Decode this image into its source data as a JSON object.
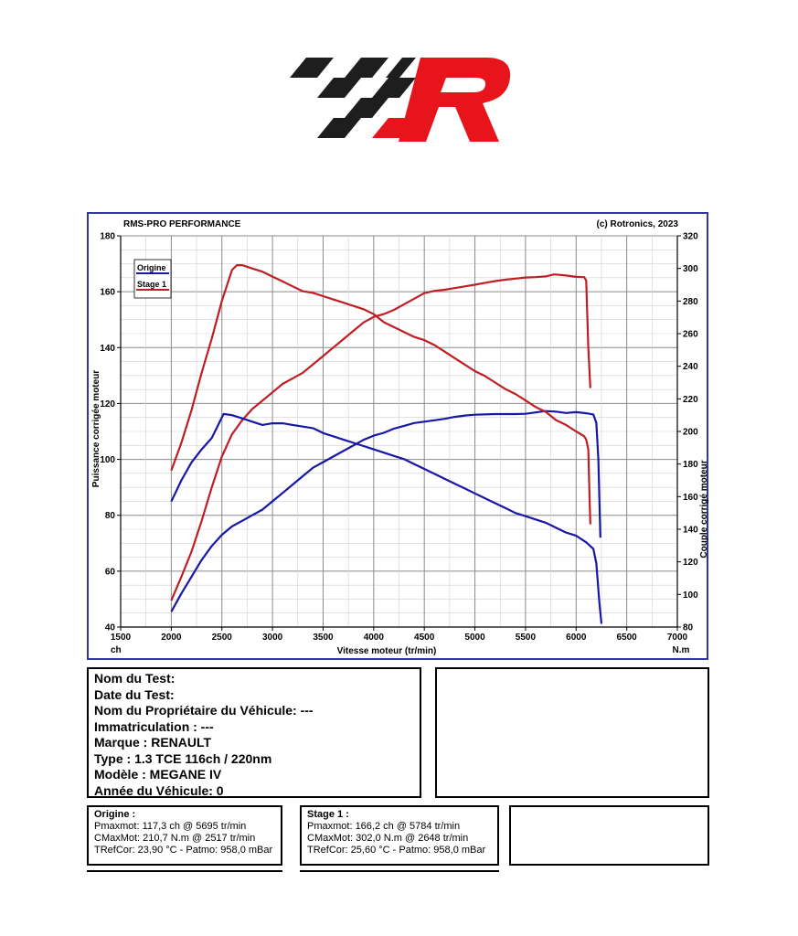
{
  "logo": {
    "name": "rms-pro-logo",
    "colors": {
      "black": "#1e1e1e",
      "red": "#e8141c"
    }
  },
  "chart_header": {
    "left": "RMS-PRO PERFORMANCE",
    "right": "(c) Rotronics, 2023"
  },
  "chart_data": {
    "type": "line",
    "title": "",
    "xlabel": "Vitesse moteur (tr/min)",
    "xunit": "ch",
    "xunit_right": "N.m",
    "ylabel": "Puissance corrigée moteur",
    "y2label": "Couple corrigé moteur",
    "xlim": [
      1500,
      7000
    ],
    "ylim": [
      40,
      180
    ],
    "y2lim": [
      80,
      320
    ],
    "xticks": [
      1500,
      2000,
      2500,
      3000,
      3500,
      4000,
      4500,
      5000,
      5500,
      6000,
      6500,
      7000
    ],
    "yticks": [
      40,
      60,
      80,
      100,
      120,
      140,
      160,
      180
    ],
    "y2ticks": [
      80,
      100,
      120,
      140,
      160,
      180,
      200,
      220,
      240,
      260,
      280,
      300,
      320
    ],
    "grid": true,
    "legend_position": "top-left",
    "colors": {
      "origine": "#1717a8",
      "stage1": "#bf1e24",
      "frame": "#2f37a8"
    },
    "series": [
      {
        "name": "Origine",
        "kind": "power",
        "axis": "left",
        "points": [
          [
            2000,
            45.5
          ],
          [
            2100,
            52
          ],
          [
            2200,
            58
          ],
          [
            2300,
            64
          ],
          [
            2400,
            69
          ],
          [
            2500,
            73
          ],
          [
            2600,
            76
          ],
          [
            2700,
            78
          ],
          [
            2800,
            80
          ],
          [
            2900,
            82
          ],
          [
            3000,
            85
          ],
          [
            3100,
            88
          ],
          [
            3200,
            91
          ],
          [
            3300,
            94
          ],
          [
            3400,
            97
          ],
          [
            3500,
            99
          ],
          [
            3600,
            101
          ],
          [
            3700,
            103
          ],
          [
            3800,
            105
          ],
          [
            3900,
            107
          ],
          [
            4000,
            108.5
          ],
          [
            4100,
            109.5
          ],
          [
            4200,
            111
          ],
          [
            4300,
            112
          ],
          [
            4400,
            113
          ],
          [
            4500,
            113.5
          ],
          [
            4600,
            114
          ],
          [
            4700,
            114.5
          ],
          [
            4800,
            115.2
          ],
          [
            4900,
            115.7
          ],
          [
            5000,
            116
          ],
          [
            5200,
            116.2
          ],
          [
            5400,
            116.2
          ],
          [
            5500,
            116.3
          ],
          [
            5600,
            116.8
          ],
          [
            5695,
            117.3
          ],
          [
            5800,
            117.1
          ],
          [
            5900,
            116.6
          ],
          [
            6000,
            116.9
          ],
          [
            6100,
            116.5
          ],
          [
            6170,
            116.1
          ],
          [
            6200,
            113
          ],
          [
            6220,
            100
          ],
          [
            6240,
            72
          ]
        ]
      },
      {
        "name": "Stage 1",
        "kind": "power",
        "axis": "left",
        "points": [
          [
            2000,
            49.5
          ],
          [
            2100,
            58
          ],
          [
            2200,
            67
          ],
          [
            2300,
            78
          ],
          [
            2400,
            90
          ],
          [
            2500,
            101
          ],
          [
            2600,
            109
          ],
          [
            2700,
            114
          ],
          [
            2800,
            118
          ],
          [
            2900,
            121
          ],
          [
            3000,
            124
          ],
          [
            3100,
            127
          ],
          [
            3200,
            129
          ],
          [
            3300,
            131
          ],
          [
            3400,
            134
          ],
          [
            3500,
            137
          ],
          [
            3600,
            140
          ],
          [
            3700,
            143
          ],
          [
            3800,
            146
          ],
          [
            3900,
            149
          ],
          [
            4000,
            151
          ],
          [
            4100,
            152
          ],
          [
            4200,
            153.5
          ],
          [
            4300,
            155.5
          ],
          [
            4400,
            157.5
          ],
          [
            4500,
            159.5
          ],
          [
            4600,
            160.3
          ],
          [
            4700,
            160.7
          ],
          [
            4800,
            161.3
          ],
          [
            4900,
            161.9
          ],
          [
            5000,
            162.5
          ],
          [
            5100,
            163.2
          ],
          [
            5200,
            163.8
          ],
          [
            5300,
            164.3
          ],
          [
            5400,
            164.7
          ],
          [
            5500,
            165.1
          ],
          [
            5600,
            165.2
          ],
          [
            5700,
            165.5
          ],
          [
            5784,
            166.2
          ],
          [
            5900,
            165.8
          ],
          [
            6000,
            165.3
          ],
          [
            6080,
            165.2
          ],
          [
            6100,
            164
          ],
          [
            6120,
            140
          ],
          [
            6140,
            125.5
          ]
        ]
      },
      {
        "name": "Origine",
        "kind": "torque",
        "axis": "right",
        "points": [
          [
            2000,
            157
          ],
          [
            2100,
            170
          ],
          [
            2200,
            181
          ],
          [
            2300,
            189
          ],
          [
            2400,
            196
          ],
          [
            2517,
            210.7
          ],
          [
            2600,
            210
          ],
          [
            2700,
            208
          ],
          [
            2800,
            206
          ],
          [
            2900,
            204
          ],
          [
            3000,
            205
          ],
          [
            3100,
            205
          ],
          [
            3200,
            204
          ],
          [
            3300,
            203
          ],
          [
            3400,
            202
          ],
          [
            3500,
            199
          ],
          [
            3600,
            197
          ],
          [
            3700,
            195
          ],
          [
            3800,
            193
          ],
          [
            3900,
            191
          ],
          [
            4000,
            189
          ],
          [
            4100,
            187
          ],
          [
            4200,
            185
          ],
          [
            4300,
            183
          ],
          [
            4400,
            180
          ],
          [
            4500,
            177
          ],
          [
            4600,
            174
          ],
          [
            4700,
            171
          ],
          [
            4800,
            168
          ],
          [
            4900,
            165
          ],
          [
            5000,
            162
          ],
          [
            5100,
            159
          ],
          [
            5200,
            156
          ],
          [
            5300,
            153
          ],
          [
            5400,
            150
          ],
          [
            5500,
            148
          ],
          [
            5600,
            146
          ],
          [
            5700,
            144
          ],
          [
            5800,
            141
          ],
          [
            5900,
            138
          ],
          [
            6000,
            136
          ],
          [
            6100,
            132
          ],
          [
            6170,
            128
          ],
          [
            6200,
            119
          ],
          [
            6230,
            95
          ],
          [
            6250,
            82
          ]
        ]
      },
      {
        "name": "Stage 1",
        "kind": "torque",
        "axis": "right",
        "points": [
          [
            2000,
            176
          ],
          [
            2100,
            193
          ],
          [
            2200,
            213
          ],
          [
            2300,
            236
          ],
          [
            2400,
            257
          ],
          [
            2500,
            280
          ],
          [
            2600,
            299
          ],
          [
            2648,
            302
          ],
          [
            2700,
            302
          ],
          [
            2800,
            300
          ],
          [
            2900,
            298
          ],
          [
            3000,
            295
          ],
          [
            3100,
            292
          ],
          [
            3200,
            289
          ],
          [
            3300,
            286
          ],
          [
            3400,
            285
          ],
          [
            3500,
            283
          ],
          [
            3600,
            281
          ],
          [
            3700,
            279
          ],
          [
            3800,
            277
          ],
          [
            3900,
            275
          ],
          [
            4000,
            272
          ],
          [
            4100,
            267
          ],
          [
            4200,
            264
          ],
          [
            4300,
            261
          ],
          [
            4400,
            258
          ],
          [
            4500,
            256
          ],
          [
            4600,
            253
          ],
          [
            4700,
            249
          ],
          [
            4800,
            245
          ],
          [
            4900,
            241
          ],
          [
            5000,
            237
          ],
          [
            5100,
            234
          ],
          [
            5200,
            230
          ],
          [
            5300,
            226
          ],
          [
            5400,
            223
          ],
          [
            5500,
            219
          ],
          [
            5600,
            215
          ],
          [
            5700,
            212
          ],
          [
            5800,
            207
          ],
          [
            5900,
            204
          ],
          [
            6000,
            200
          ],
          [
            6080,
            197
          ],
          [
            6100,
            195
          ],
          [
            6120,
            189
          ],
          [
            6130,
            165
          ],
          [
            6140,
            143
          ]
        ]
      }
    ]
  },
  "vehicle_info": {
    "nom_test": "Nom du Test:",
    "date_test": "Date du Test:",
    "proprietaire": "Nom du Propriétaire du Véhicule: ---",
    "immatriculation": "Immatriculation  : ---",
    "marque": "Marque  : RENAULT",
    "type": "Type  : 1.3 TCE 116ch / 220nm",
    "modele": "Modèle  : MEGANE IV",
    "annee": "Année du Véhicule: 0"
  },
  "results": {
    "origine": {
      "title": "Origine :",
      "pmax": "Pmaxmot: 117,3 ch @ 5695 tr/min",
      "cmax": "CMaxMot: 210,7 N.m @ 2517 tr/min",
      "tref": "TRefCor: 23,90 °C - Patmo: 958,0 mBar"
    },
    "stage1": {
      "title": "Stage 1 :",
      "pmax": "Pmaxmot: 166,2 ch @ 5784 tr/min",
      "cmax": "CMaxMot: 302,0 N.m @ 2648 tr/min",
      "tref": "TRefCor: 25,60 °C - Patmo: 958,0 mBar"
    }
  }
}
